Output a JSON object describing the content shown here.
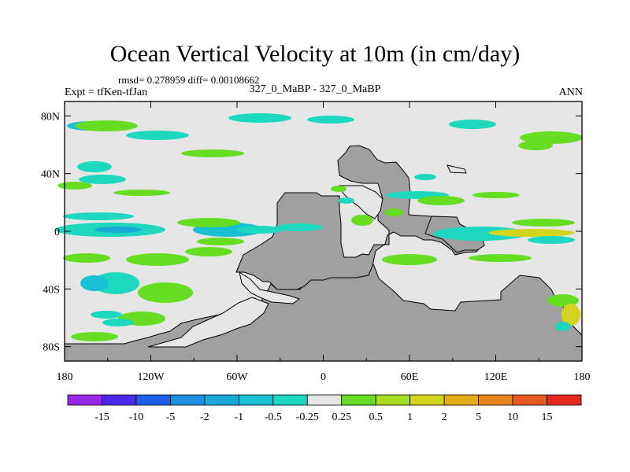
{
  "chart_data": {
    "type": "heatmap",
    "title": "Ocean Vertical Velocity at 10m (in cm/day)",
    "stats_text": "rmsd= 0.278959 diff= 0.00108662",
    "left_label": "Expt = tfKen-tfJan",
    "center_label": "327_0_MaBP - 327_0_MaBP",
    "right_label": "ANN",
    "x_ticks": [
      "180",
      "120W",
      "60W",
      "0",
      "60E",
      "120E",
      "180"
    ],
    "x_tick_values": [
      -180,
      -120,
      -60,
      0,
      60,
      120,
      180
    ],
    "y_ticks": [
      "80N",
      "40N",
      "0",
      "40S",
      "80S"
    ],
    "y_tick_values": [
      80,
      40,
      0,
      -40,
      -80
    ],
    "xlim": [
      -180,
      180
    ],
    "ylim": [
      -90,
      90
    ],
    "colorbar": {
      "labels": [
        "-15",
        "-10",
        "-5",
        "-2",
        "-1",
        "-0.5",
        "-0.25",
        "0.25",
        "0.5",
        "1",
        "2",
        "5",
        "10",
        "15"
      ],
      "colors": [
        "#9a27e6",
        "#4b27e6",
        "#1f5fe6",
        "#1e8ee0",
        "#19a9d8",
        "#18c0d3",
        "#1dd8bf",
        "#e6e6e6",
        "#66dd22",
        "#a6dd22",
        "#d2d41e",
        "#e6ac18",
        "#e6861c",
        "#e65a1e",
        "#e6281e"
      ]
    },
    "land_color": "#a0a0a0",
    "background_color": "#e6e6e6"
  }
}
